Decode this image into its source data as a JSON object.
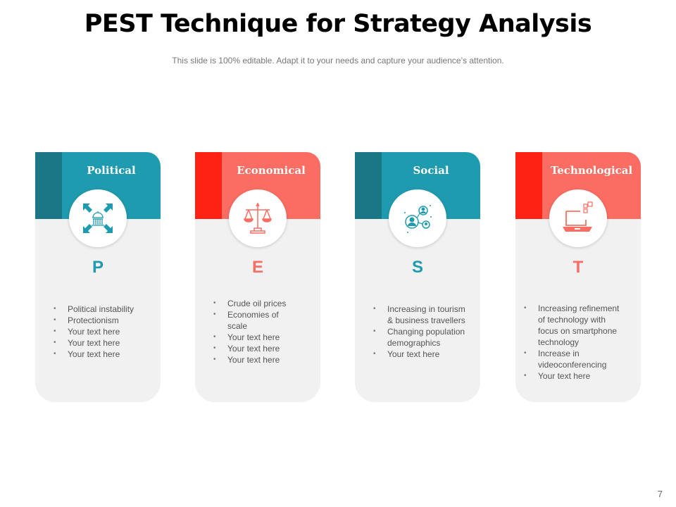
{
  "title": "PEST Technique for Strategy Analysis",
  "subtitle": "This slide is 100% editable. Adapt it to your needs and capture your audience’s attention.",
  "page_number": "7",
  "colors": {
    "teal": "#1f9bb0",
    "teal_dark": "#1b7686",
    "coral": "#fb6d62",
    "red": "#fe2214",
    "card_bg": "#f1f1f1"
  },
  "cards": [
    {
      "heading": "Political",
      "letter": "P",
      "icon": "capitol-arrows-icon",
      "theme": "teal",
      "items": [
        "Political instability",
        "Protectionism",
        "Your text here",
        "Your text here",
        "Your text here"
      ]
    },
    {
      "heading": "Economical",
      "letter": "E",
      "icon": "scales-icon",
      "theme": "coral",
      "items": [
        "Crude oil prices",
        "Economies of\nscale",
        "Your text here",
        "Your text here",
        "Your text here"
      ]
    },
    {
      "heading": "Social",
      "letter": "S",
      "icon": "social-network-icon",
      "theme": "teal",
      "items": [
        "Increasing in tourism\n& business travellers",
        "Changing population\ndemographics",
        "Your text here"
      ]
    },
    {
      "heading": "Technological",
      "letter": "T",
      "icon": "laptop-icon",
      "theme": "coral",
      "items": [
        "Increasing refinement\nof technology with\nfocus on smartphone\ntechnology",
        "Increase in\nvideoconferencing",
        "Your text here"
      ]
    }
  ]
}
